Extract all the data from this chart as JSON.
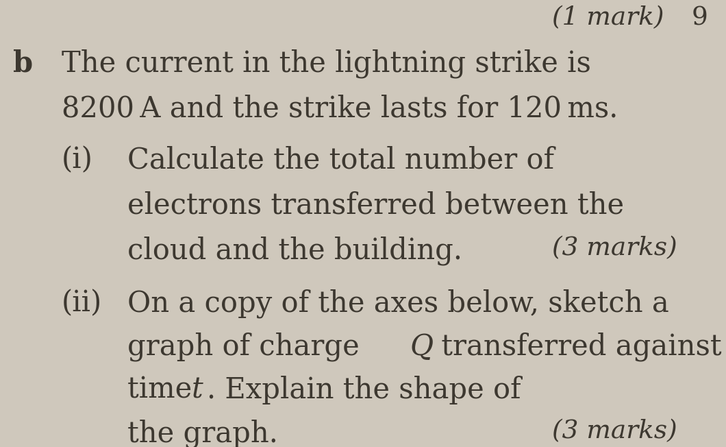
{
  "background_color": "#cfc8bc",
  "text_color": "#3d3830",
  "top_right_text": "(1 mark)",
  "page_number": "9",
  "label_b": "b",
  "intro_line1": "The current in the lightning strike is",
  "intro_line2": "8200 A and the strike lasts for 120 ms.",
  "part_i_label": "(i)",
  "part_i_line1": "Calculate the total number of",
  "part_i_line2": "electrons transferred between the",
  "part_i_line3": "cloud and the building.",
  "part_i_marks": "(3 marks)",
  "part_ii_label": "(ii)",
  "part_ii_line1": "On a copy of the axes below, sketch a",
  "part_ii_line2_pre": "graph of charge ",
  "part_ii_line2_italic": "Q",
  "part_ii_line2_post": " transferred against",
  "part_ii_line3_pre": "time ",
  "part_ii_line3_italic": "t",
  "part_ii_line3_post": ". Explain the shape of",
  "part_ii_line4": "the graph.",
  "part_ii_marks": "(3 marks)",
  "font_size_main": 30,
  "font_size_marks": 27,
  "font_size_b": 30
}
